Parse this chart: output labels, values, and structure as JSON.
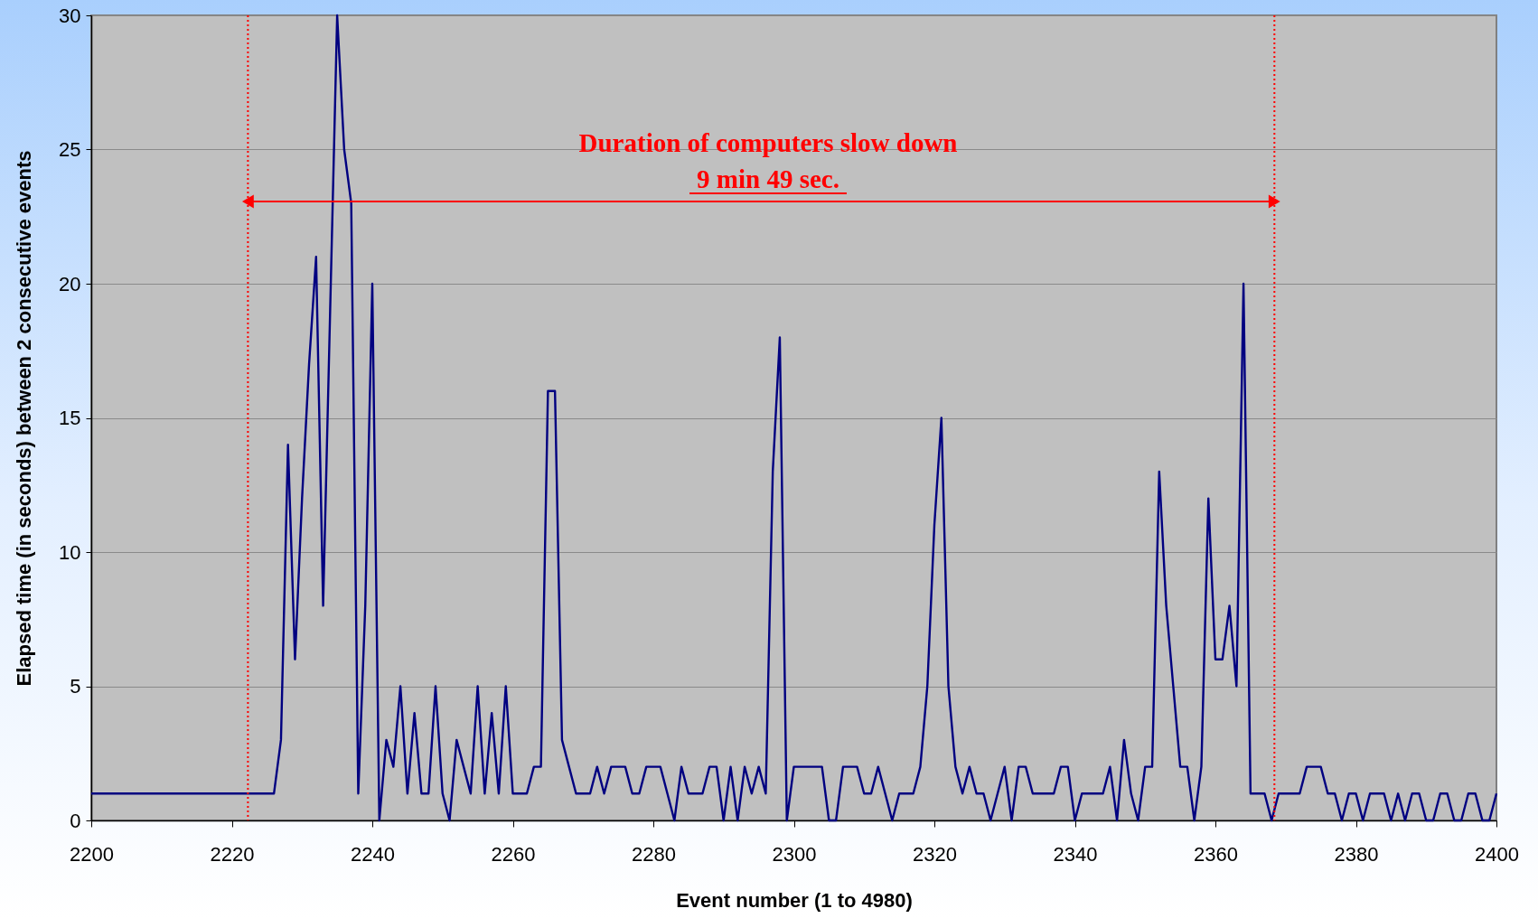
{
  "chart_data": {
    "type": "line",
    "xlabel": "Event number (1 to 4980)",
    "ylabel": "Elapsed time (in seconds) between 2 consecutive events",
    "x": [
      2200,
      2201,
      2202,
      2203,
      2204,
      2205,
      2206,
      2207,
      2208,
      2209,
      2210,
      2211,
      2212,
      2213,
      2214,
      2215,
      2216,
      2217,
      2218,
      2219,
      2220,
      2221,
      2222,
      2223,
      2224,
      2225,
      2226,
      2227,
      2228,
      2229,
      2230,
      2231,
      2232,
      2233,
      2234,
      2235,
      2236,
      2237,
      2238,
      2239,
      2240,
      2241,
      2242,
      2243,
      2244,
      2245,
      2246,
      2247,
      2248,
      2249,
      2250,
      2251,
      2252,
      2253,
      2254,
      2255,
      2256,
      2257,
      2258,
      2259,
      2260,
      2261,
      2262,
      2263,
      2264,
      2265,
      2266,
      2267,
      2268,
      2269,
      2270,
      2271,
      2272,
      2273,
      2274,
      2275,
      2276,
      2277,
      2278,
      2279,
      2280,
      2281,
      2282,
      2283,
      2284,
      2285,
      2286,
      2287,
      2288,
      2289,
      2290,
      2291,
      2292,
      2293,
      2294,
      2295,
      2296,
      2297,
      2298,
      2299,
      2300,
      2301,
      2302,
      2303,
      2304,
      2305,
      2306,
      2307,
      2308,
      2309,
      2310,
      2311,
      2312,
      2313,
      2314,
      2315,
      2316,
      2317,
      2318,
      2319,
      2320,
      2321,
      2322,
      2323,
      2324,
      2325,
      2326,
      2327,
      2328,
      2329,
      2330,
      2331,
      2332,
      2333,
      2334,
      2335,
      2336,
      2337,
      2338,
      2339,
      2340,
      2341,
      2342,
      2343,
      2344,
      2345,
      2346,
      2347,
      2348,
      2349,
      2350,
      2351,
      2352,
      2353,
      2354,
      2355,
      2356,
      2357,
      2358,
      2359,
      2360,
      2361,
      2362,
      2363,
      2364,
      2365,
      2366,
      2367,
      2368,
      2369,
      2370,
      2371,
      2372,
      2373,
      2374,
      2375,
      2376,
      2377,
      2378,
      2379,
      2380,
      2381,
      2382,
      2383,
      2384,
      2385,
      2386,
      2387,
      2388,
      2389,
      2390,
      2391,
      2392,
      2393,
      2394,
      2395,
      2396,
      2397,
      2398,
      2399,
      2400
    ],
    "series": [
      {
        "color": "#000080",
        "values": [
          1,
          1,
          1,
          1,
          1,
          1,
          1,
          1,
          1,
          1,
          1,
          1,
          1,
          1,
          1,
          1,
          1,
          1,
          1,
          1,
          1,
          1,
          1,
          1,
          1,
          1,
          1,
          3,
          14,
          6,
          12,
          17,
          21,
          8,
          19,
          30,
          25,
          23,
          1,
          8,
          20,
          0,
          3,
          2,
          5,
          1,
          4,
          1,
          1,
          5,
          1,
          0,
          3,
          2,
          1,
          5,
          1,
          4,
          1,
          5,
          1,
          1,
          1,
          2,
          2,
          16,
          16,
          3,
          2,
          1,
          1,
          1,
          2,
          1,
          2,
          2,
          2,
          1,
          1,
          2,
          2,
          2,
          1,
          0,
          2,
          1,
          1,
          1,
          2,
          2,
          0,
          2,
          0,
          2,
          1,
          2,
          1,
          13,
          18,
          0,
          2,
          2,
          2,
          2,
          2,
          0,
          0,
          2,
          2,
          2,
          1,
          1,
          2,
          1,
          0,
          1,
          1,
          1,
          2,
          5,
          11,
          15,
          5,
          2,
          1,
          2,
          1,
          1,
          0,
          1,
          2,
          0,
          2,
          2,
          1,
          1,
          1,
          1,
          2,
          2,
          0,
          1,
          1,
          1,
          1,
          2,
          0,
          3,
          1,
          0,
          2,
          2,
          13,
          8,
          5,
          2,
          2,
          0,
          2,
          12,
          6,
          6,
          8,
          5,
          20,
          1,
          1,
          1,
          0,
          1,
          1,
          1,
          1,
          2,
          2,
          2,
          1,
          1,
          0,
          1,
          1,
          0,
          1,
          1,
          1,
          0,
          1,
          0,
          1,
          1,
          0,
          0,
          1,
          1,
          0,
          0,
          1,
          1,
          0,
          0,
          1
        ]
      }
    ],
    "xlim": [
      2200,
      2400
    ],
    "xticks": [
      2200,
      2220,
      2240,
      2260,
      2280,
      2300,
      2320,
      2340,
      2360,
      2380,
      2400
    ],
    "ylim": [
      0,
      30
    ],
    "yticks": [
      0,
      5,
      10,
      15,
      20,
      25,
      30
    ],
    "grid": "y",
    "marker": "none",
    "line_style": "solid",
    "ref_lines": [
      {
        "axis": "x",
        "value": 2222.3,
        "color": "#ff0000",
        "line_style": "dotted"
      },
      {
        "axis": "x",
        "value": 2368.4,
        "color": "#ff0000",
        "line_style": "dotted"
      }
    ],
    "annotations": [
      "Duration of computers slow down",
      "9 min 49 sec."
    ]
  }
}
